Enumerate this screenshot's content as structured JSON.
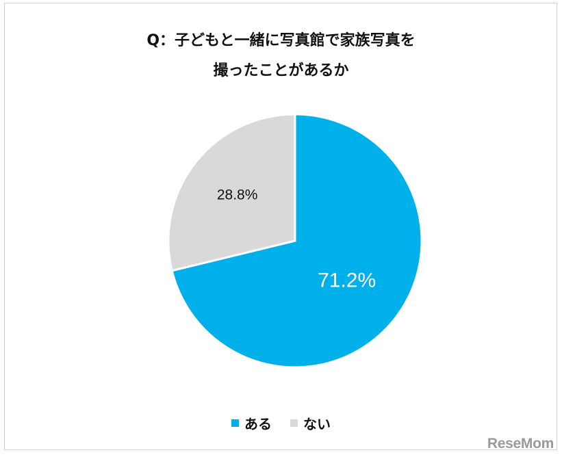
{
  "chart_data": {
    "type": "pie",
    "title_lines": [
      "Q：子どもと一緒に写真館で家族写真を",
      "撮ったことがあるか"
    ],
    "slices": [
      {
        "label": "ある",
        "value": 71.2,
        "display": "71.2%",
        "color": "#00b0eb",
        "label_color": "#ffffff"
      },
      {
        "label": "ない",
        "value": 28.8,
        "display": "28.8%",
        "color": "#d9d9d9",
        "label_color": "#111111"
      }
    ],
    "start_angle_deg": 0,
    "direction": "clockwise",
    "legend_position": "bottom"
  },
  "watermark": "ReseMom"
}
